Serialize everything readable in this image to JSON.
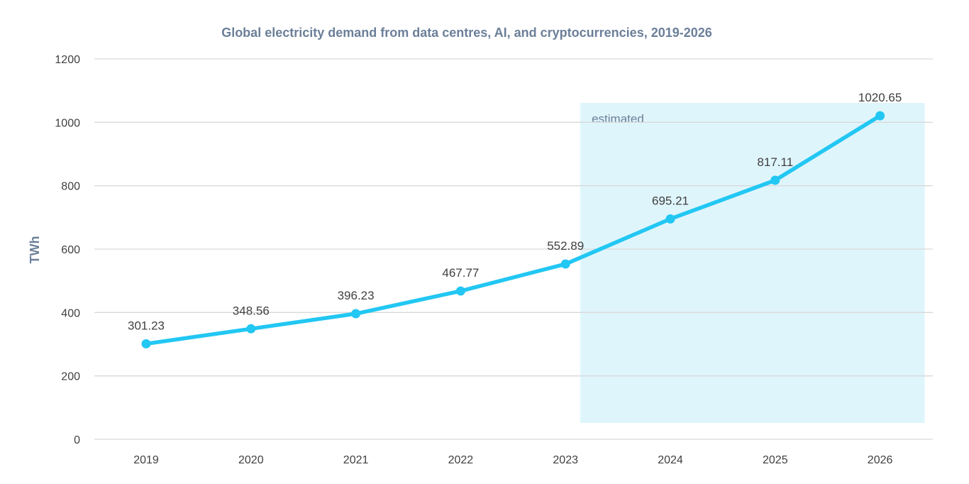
{
  "chart_data": {
    "type": "line",
    "title": "Global electricity demand from data centres, AI, and cryptocurrencies, 2019-2026",
    "xlabel": "",
    "ylabel": "TWh",
    "categories": [
      "2019",
      "2020",
      "2021",
      "2022",
      "2023",
      "2024",
      "2025",
      "2026"
    ],
    "series": [
      {
        "values": [
          301.23,
          348.56,
          396.23,
          467.77,
          552.89,
          695.21,
          817.11,
          1020.65
        ],
        "labels": [
          "301.23",
          "348.56",
          "396.23",
          "467.77",
          "552.89",
          "695.21",
          "817.11",
          "1020.65"
        ],
        "color": "#22c7f3"
      }
    ],
    "ylim": [
      0,
      1200
    ],
    "yticks": [
      "0",
      "200",
      "400",
      "600",
      "800",
      "1000",
      "1200"
    ],
    "grid": true,
    "legend": "none",
    "estimated_region": {
      "label": "estimated",
      "from_year": "2023",
      "to_year": "2026",
      "color": "#dff5fc"
    },
    "colors": {
      "grid": "#d9d9d9",
      "title": "#6b7f99",
      "tick": "#404040"
    }
  }
}
